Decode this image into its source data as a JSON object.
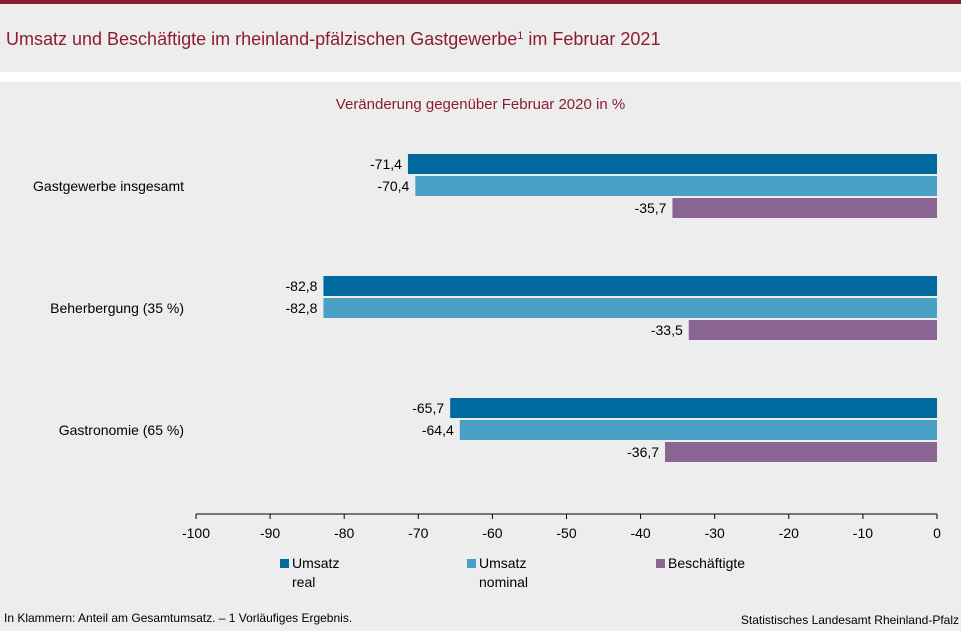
{
  "title": {
    "main": "Umsatz und Beschäftigte im rheinland-pfälzischen Gastgewerbe",
    "sup": "1",
    "suffix": " im Februar 2021"
  },
  "colors": {
    "accent": "#8c1c32",
    "umsatz_real": "#006a9e",
    "umsatz_nominal": "#4a9fc4",
    "beschaeftigte": "#8a6492"
  },
  "chart_data": {
    "type": "bar",
    "orientation": "horizontal",
    "subtitle": "Veränderung gegenüber Februar 2020 in %",
    "categories": [
      "Gastgewerbe insgesamt",
      "Beherbergung (35 %)",
      "Gastronomie (65 %)"
    ],
    "series": [
      {
        "name": "Umsatz real",
        "legend": "Umsatz\nreal",
        "color": "#006a9e",
        "values": [
          -71.4,
          -82.8,
          -65.7
        ],
        "labels": [
          "-71,4",
          "-82,8",
          "-65,7"
        ]
      },
      {
        "name": "Umsatz nominal",
        "legend": "Umsatz\nnominal",
        "color": "#4a9fc4",
        "values": [
          -70.4,
          -82.8,
          -64.4
        ],
        "labels": [
          "-70,4",
          "-82,8",
          "-64,4"
        ]
      },
      {
        "name": "Beschäftigte",
        "legend": "Beschäftigte",
        "color": "#8a6492",
        "values": [
          -35.7,
          -33.5,
          -36.7
        ],
        "labels": [
          "-35,7",
          "-33,5",
          "-36,7"
        ]
      }
    ],
    "xlim": [
      -100,
      0
    ],
    "xticks": [
      -100,
      -90,
      -80,
      -70,
      -60,
      -50,
      -40,
      -30,
      -20,
      -10,
      0
    ],
    "xtick_labels": [
      "-100",
      "-90",
      "-80",
      "-70",
      "-60",
      "-50",
      "-40",
      "-30",
      "-20",
      "-10",
      "0"
    ],
    "grid": false,
    "legend_position": "bottom"
  },
  "footnote": "In Klammern: Anteil am Gesamtumsatz. – 1 Vorläufiges Ergebnis.",
  "source": "Statistisches Landesamt Rheinland-Pfalz"
}
